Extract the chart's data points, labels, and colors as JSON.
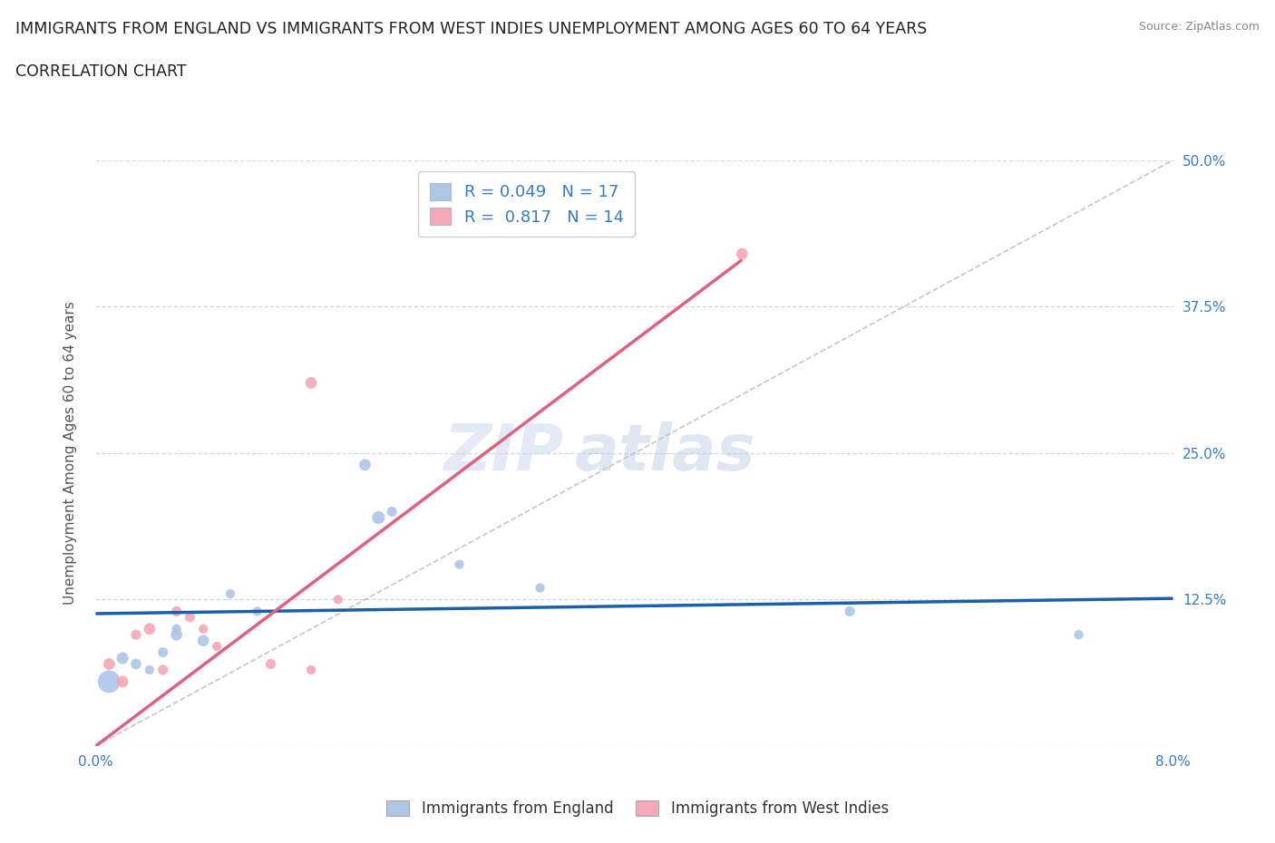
{
  "title_line1": "IMMIGRANTS FROM ENGLAND VS IMMIGRANTS FROM WEST INDIES UNEMPLOYMENT AMONG AGES 60 TO 64 YEARS",
  "title_line2": "CORRELATION CHART",
  "source": "Source: ZipAtlas.com",
  "ylabel": "Unemployment Among Ages 60 to 64 years",
  "xlim": [
    0.0,
    0.08
  ],
  "ylim": [
    0.0,
    0.5
  ],
  "x_ticks": [
    0.0,
    0.02,
    0.04,
    0.06,
    0.08
  ],
  "x_tick_labels": [
    "0.0%",
    "",
    "",
    "",
    "8.0%"
  ],
  "y_ticks": [
    0.0,
    0.125,
    0.25,
    0.375,
    0.5
  ],
  "y_tick_labels": [
    "",
    "12.5%",
    "25.0%",
    "37.5%",
    "50.0%"
  ],
  "watermark_zip": "ZIP",
  "watermark_atlas": "atlas",
  "legend_R_england": "0.049",
  "legend_N_england": "17",
  "legend_R_westindies": "0.817",
  "legend_N_westindies": "14",
  "england_color": "#aec6e8",
  "westindies_color": "#f4a8b8",
  "england_line_color": "#1a5fa8",
  "westindies_line_color": "#e06080",
  "diagonal_color": "#b8b8b8",
  "grid_color": "#c8d4e8",
  "background_color": "#ffffff",
  "england_x": [
    0.001,
    0.002,
    0.003,
    0.004,
    0.005,
    0.006,
    0.006,
    0.008,
    0.01,
    0.012,
    0.02,
    0.021,
    0.022,
    0.027,
    0.033,
    0.056,
    0.073
  ],
  "england_y": [
    0.055,
    0.075,
    0.07,
    0.065,
    0.08,
    0.095,
    0.1,
    0.09,
    0.13,
    0.115,
    0.24,
    0.195,
    0.2,
    0.155,
    0.135,
    0.115,
    0.095
  ],
  "england_size": [
    320,
    90,
    70,
    55,
    65,
    85,
    55,
    85,
    55,
    55,
    85,
    105,
    65,
    55,
    55,
    65,
    55
  ],
  "westindies_x": [
    0.001,
    0.002,
    0.003,
    0.004,
    0.005,
    0.006,
    0.007,
    0.008,
    0.009,
    0.013,
    0.016,
    0.018,
    0.048,
    0.016
  ],
  "westindies_y": [
    0.07,
    0.055,
    0.095,
    0.1,
    0.065,
    0.115,
    0.11,
    0.1,
    0.085,
    0.07,
    0.31,
    0.125,
    0.42,
    0.065
  ],
  "westindies_size": [
    85,
    85,
    65,
    85,
    65,
    65,
    65,
    55,
    55,
    65,
    85,
    55,
    85,
    55
  ],
  "england_trend_x": [
    0.0,
    0.08
  ],
  "england_trend_y": [
    0.113,
    0.126
  ],
  "westindies_trend_x": [
    0.0,
    0.048
  ],
  "westindies_trend_y": [
    0.0,
    0.415
  ]
}
